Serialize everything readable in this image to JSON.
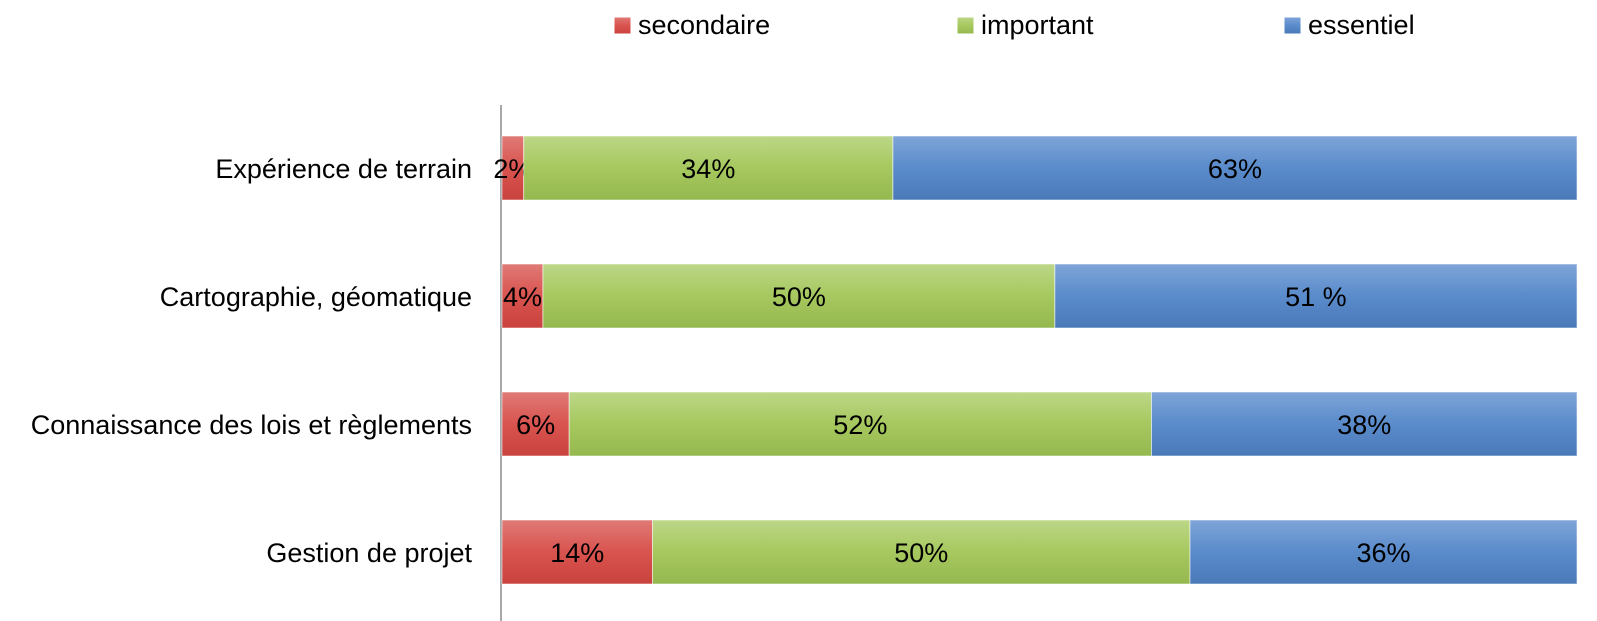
{
  "chart_data": {
    "type": "bar",
    "orientation": "horizontal",
    "stacked": true,
    "percent_stacked": true,
    "categories": [
      "Expérience de terrain",
      "Cartographie, géomatique",
      "Connaissance des lois et règlements",
      "Gestion de projet"
    ],
    "series": [
      {
        "name": "secondaire",
        "values": [
          2,
          4,
          6,
          14
        ],
        "labels": [
          "2%",
          "4%",
          "6%",
          "14%"
        ],
        "color": "#d9534f"
      },
      {
        "name": "important",
        "values": [
          34,
          50,
          52,
          50
        ],
        "labels": [
          "34%",
          "50%",
          "52%",
          "50%"
        ],
        "color": "#a6c85e"
      },
      {
        "name": "essentiel",
        "values": [
          63,
          51,
          38,
          36
        ],
        "labels": [
          "63%",
          "51 %",
          "38%",
          "36%"
        ],
        "color": "#5a8bcb"
      }
    ],
    "legend_position": "top",
    "grid": false
  }
}
